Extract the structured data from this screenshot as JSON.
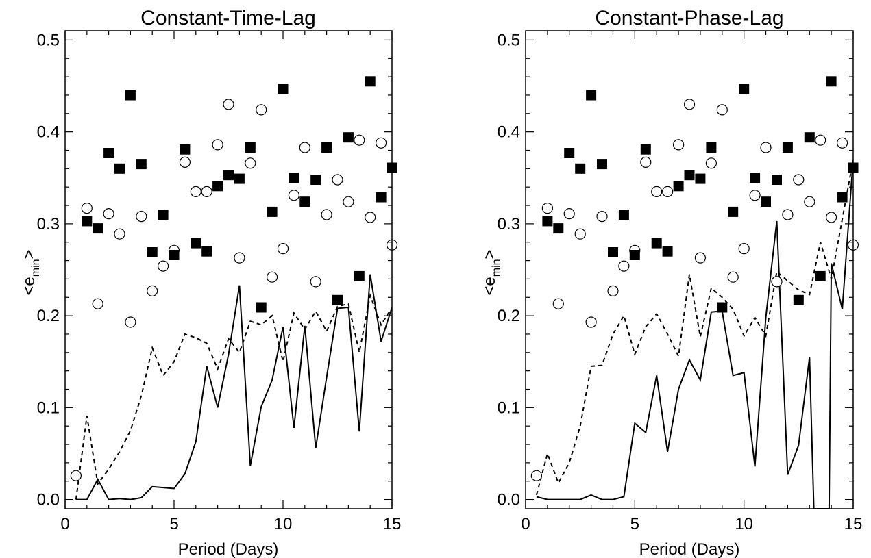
{
  "chart_data": [
    {
      "type": "scatter",
      "title": "Constant-Time-Lag",
      "xlabel": "Period (Days)",
      "ylabel": "<e",
      "ylabel_sub": "min",
      "ylabel_end": ">",
      "xlim": [
        0,
        15
      ],
      "ylim": [
        -0.01,
        0.51
      ],
      "xticks": [
        0,
        5,
        10,
        15
      ],
      "xtick_labels": [
        "0",
        "5",
        "10",
        "15"
      ],
      "yticks": [
        0.0,
        0.1,
        0.2,
        0.3,
        0.4,
        0.5
      ],
      "ytick_labels": [
        "0.0",
        "0.1",
        "0.2",
        "0.3",
        "0.4",
        "0.5"
      ],
      "filled_squares": {
        "x": [
          1,
          1.5,
          2,
          2.5,
          3,
          3.5,
          4,
          4.5,
          5,
          5.5,
          6,
          6.5,
          7,
          7.5,
          8,
          8.5,
          9,
          9.5,
          10,
          10.5,
          11,
          11.5,
          12,
          12.5,
          13,
          13.5,
          14,
          14.5,
          15
        ],
        "y": [
          0.303,
          0.295,
          0.377,
          0.36,
          0.44,
          0.365,
          0.269,
          0.31,
          0.266,
          0.381,
          0.279,
          0.27,
          0.341,
          0.353,
          0.349,
          0.383,
          0.209,
          0.313,
          0.447,
          0.35,
          0.324,
          0.348,
          0.383,
          0.217,
          0.394,
          0.243,
          0.455,
          0.329,
          0.361
        ]
      },
      "open_circles": {
        "x": [
          0.5,
          1,
          1.5,
          2,
          2.5,
          3,
          3.5,
          4,
          4.5,
          5,
          5.5,
          6,
          6.5,
          7,
          7.5,
          8,
          8.5,
          9,
          9.5,
          10,
          10.5,
          11,
          11.5,
          12,
          12.5,
          13,
          13.5,
          14,
          14.5,
          15
        ],
        "y": [
          0.026,
          0.317,
          0.213,
          0.311,
          0.289,
          0.193,
          0.308,
          0.227,
          0.254,
          0.271,
          0.367,
          0.335,
          0.335,
          0.386,
          0.43,
          0.263,
          0.366,
          0.424,
          0.242,
          0.273,
          0.331,
          0.383,
          0.237,
          0.31,
          0.348,
          0.324,
          0.391,
          0.307,
          0.388,
          0.277
        ]
      },
      "solid_line": {
        "x": [
          0.5,
          1,
          1.5,
          2,
          2.5,
          3,
          3.5,
          4,
          4.5,
          5,
          5.5,
          6,
          6.5,
          7,
          7.5,
          8,
          8.5,
          9,
          9.5,
          10,
          10.5,
          11,
          11.5,
          12,
          12.5,
          13,
          13.5,
          14,
          14.5,
          15
        ],
        "y": [
          0.0,
          0.0,
          0.022,
          0.0,
          0.001,
          0.0,
          0.002,
          0.014,
          0.013,
          0.012,
          0.028,
          0.063,
          0.145,
          0.1,
          0.158,
          0.233,
          0.037,
          0.101,
          0.13,
          0.188,
          0.078,
          0.189,
          0.056,
          0.133,
          0.208,
          0.209,
          0.074,
          0.245,
          0.172,
          0.209
        ]
      },
      "dashed_line": {
        "x": [
          0.5,
          1,
          1.5,
          2,
          2.5,
          3,
          3.5,
          4,
          4.5,
          5,
          5.5,
          6,
          6.5,
          7,
          7.5,
          8,
          8.5,
          9,
          9.5,
          10,
          10.5,
          11,
          11.5,
          12,
          12.5,
          13,
          13.5,
          14,
          14.5,
          15
        ],
        "y": [
          0.0,
          0.091,
          0.017,
          0.033,
          0.052,
          0.075,
          0.113,
          0.165,
          0.135,
          0.15,
          0.18,
          0.176,
          0.17,
          0.142,
          0.175,
          0.16,
          0.194,
          0.19,
          0.2,
          0.15,
          0.203,
          0.185,
          0.205,
          0.183,
          0.21,
          0.213,
          0.16,
          0.222,
          0.19,
          0.209
        ]
      }
    },
    {
      "type": "scatter",
      "title": "Constant-Phase-Lag",
      "xlabel": "Period (Days)",
      "ylabel": "<e",
      "ylabel_sub": "min",
      "ylabel_end": ">",
      "xlim": [
        0,
        15
      ],
      "ylim": [
        -0.01,
        0.51
      ],
      "xticks": [
        0,
        5,
        10,
        15
      ],
      "xtick_labels": [
        "0",
        "5",
        "10",
        "15"
      ],
      "yticks": [
        0.0,
        0.1,
        0.2,
        0.3,
        0.4,
        0.5
      ],
      "ytick_labels": [
        "0.0",
        "0.1",
        "0.2",
        "0.3",
        "0.4",
        "0.5"
      ],
      "filled_squares": {
        "x": [
          1,
          1.5,
          2,
          2.5,
          3,
          3.5,
          4,
          4.5,
          5,
          5.5,
          6,
          6.5,
          7,
          7.5,
          8,
          8.5,
          9,
          9.5,
          10,
          10.5,
          11,
          11.5,
          12,
          12.5,
          13,
          13.5,
          14,
          14.5,
          15
        ],
        "y": [
          0.303,
          0.295,
          0.377,
          0.36,
          0.44,
          0.365,
          0.269,
          0.31,
          0.266,
          0.381,
          0.279,
          0.27,
          0.341,
          0.353,
          0.349,
          0.383,
          0.209,
          0.313,
          0.447,
          0.35,
          0.324,
          0.348,
          0.383,
          0.217,
          0.394,
          0.243,
          0.455,
          0.329,
          0.361
        ]
      },
      "open_circles": {
        "x": [
          0.5,
          1,
          1.5,
          2,
          2.5,
          3,
          3.5,
          4,
          4.5,
          5,
          5.5,
          6,
          6.5,
          7,
          7.5,
          8,
          8.5,
          9,
          9.5,
          10,
          10.5,
          11,
          11.5,
          12,
          12.5,
          13,
          13.5,
          14,
          14.5,
          15
        ],
        "y": [
          0.026,
          0.317,
          0.213,
          0.311,
          0.289,
          0.193,
          0.308,
          0.227,
          0.254,
          0.271,
          0.367,
          0.335,
          0.335,
          0.386,
          0.43,
          0.263,
          0.366,
          0.424,
          0.242,
          0.273,
          0.331,
          0.383,
          0.237,
          0.31,
          0.348,
          0.324,
          0.391,
          0.307,
          0.388,
          0.277
        ]
      },
      "solid_line": {
        "x": [
          0.5,
          1,
          1.5,
          2,
          2.5,
          3,
          3.5,
          4,
          4.5,
          5,
          5.5,
          6,
          6.5,
          7,
          7.5,
          8,
          8.5,
          9,
          9.5,
          10,
          10.5,
          11,
          11.5,
          12,
          12.5,
          13,
          13.2,
          13.9,
          14,
          14.5,
          15
        ],
        "y": [
          0.003,
          0.0,
          0.0,
          0.0,
          0.0,
          0.005,
          0.0,
          0.0,
          0.003,
          0.083,
          0.073,
          0.135,
          0.052,
          0.12,
          0.152,
          0.13,
          0.204,
          0.205,
          0.135,
          0.138,
          0.036,
          0.198,
          0.303,
          0.027,
          0.059,
          0.155,
          -0.01,
          -0.01,
          0.257,
          0.207,
          0.37
        ]
      },
      "dashed_line": {
        "x": [
          0.5,
          1,
          1.5,
          2,
          2.5,
          3,
          3.5,
          4,
          4.5,
          5,
          5.5,
          6,
          6.5,
          7,
          7.5,
          8,
          8.5,
          9,
          9.5,
          10,
          10.5,
          11,
          11.5,
          12,
          12.5,
          13,
          13.5,
          14,
          14.5,
          15
        ],
        "y": [
          0.005,
          0.05,
          0.018,
          0.04,
          0.08,
          0.145,
          0.146,
          0.18,
          0.2,
          0.158,
          0.188,
          0.202,
          0.18,
          0.156,
          0.245,
          0.177,
          0.23,
          0.22,
          0.207,
          0.178,
          0.198,
          0.178,
          0.248,
          0.238,
          0.228,
          0.223,
          0.28,
          0.24,
          0.305,
          0.37
        ]
      }
    }
  ]
}
